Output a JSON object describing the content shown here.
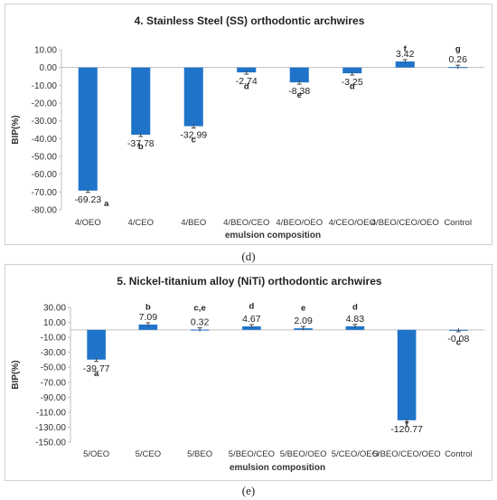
{
  "chart_data": [
    {
      "type": "bar",
      "title": "4.  Stainless Steel (SS) orthodontic archwires",
      "xlabel": "emulsion composition",
      "ylabel": "BIP(%)",
      "ylim": [
        -80,
        10
      ],
      "ytick_step": 10,
      "ytick_labels": [
        "10.00",
        "0.00",
        "-10.00",
        "-20.00",
        "-30.00",
        "-40.00",
        "-50.00",
        "-60.00",
        "-70.00",
        "-80.00"
      ],
      "categories": [
        "4/OEO",
        "4/CEO",
        "4/BEO",
        "4/BEO/CEO",
        "4/BEO/OEO",
        "4/CEO/OEO",
        "4/BEO/CEO/OEO",
        "Control"
      ],
      "values": [
        -69.23,
        -37.78,
        -32.99,
        -2.74,
        -8.38,
        -3.25,
        3.42,
        0.26
      ],
      "value_labels": [
        "-69.23",
        "-37.78",
        "-32.99",
        "-2.74",
        "-8.38",
        "-3.25",
        "3.42",
        "0.26"
      ],
      "letters": [
        "a",
        "b",
        "c",
        "d",
        "e",
        "d",
        "f",
        "g"
      ],
      "letter_y": [
        -78,
        -46,
        -42,
        -12,
        -17,
        -12,
        9,
        9
      ],
      "letter_dx": [
        0.35,
        0,
        0,
        0,
        0,
        0,
        0,
        0
      ],
      "bar_color": "#1f74c9",
      "grid": false
    },
    {
      "type": "bar",
      "title": "5. Nickel-titanium alloy (NiTi) orthodontic archwires",
      "xlabel": "emulsion composition",
      "ylabel": "BIP(%)",
      "ylim": [
        -150,
        30
      ],
      "ytick_step": 20,
      "ytick_labels": [
        "30.00",
        "10.00",
        "-10.00",
        "-30.00",
        "-50.00",
        "-70.00",
        "-90.00",
        "-110.00",
        "-130.00",
        "-150.00"
      ],
      "categories": [
        "5/OEO",
        "5/CEO",
        "5/BEO",
        "5/BEO/CEO",
        "5/BEO/OEO",
        "5/CEO/OEO",
        "5/BEO/CEO/OEO",
        "Control"
      ],
      "values": [
        -39.77,
        7.09,
        0.32,
        4.67,
        2.09,
        4.83,
        -120.77,
        -0.08
      ],
      "value_labels": [
        "-39.77",
        "7.09",
        "0.32",
        "4.67",
        "2.09",
        "4.83",
        "-120.77",
        "-0.08"
      ],
      "letters": [
        "a",
        "b",
        "c,e",
        "d",
        "e",
        "d",
        "f",
        "c"
      ],
      "letter_y": [
        -62,
        27,
        26,
        28,
        26,
        27,
        -130,
        -20
      ],
      "letter_dx": [
        0,
        0,
        0,
        0,
        0,
        0,
        0,
        0
      ],
      "bar_color": "#1f74c9",
      "grid": false
    }
  ],
  "captions": [
    "(d)",
    "(e)"
  ]
}
